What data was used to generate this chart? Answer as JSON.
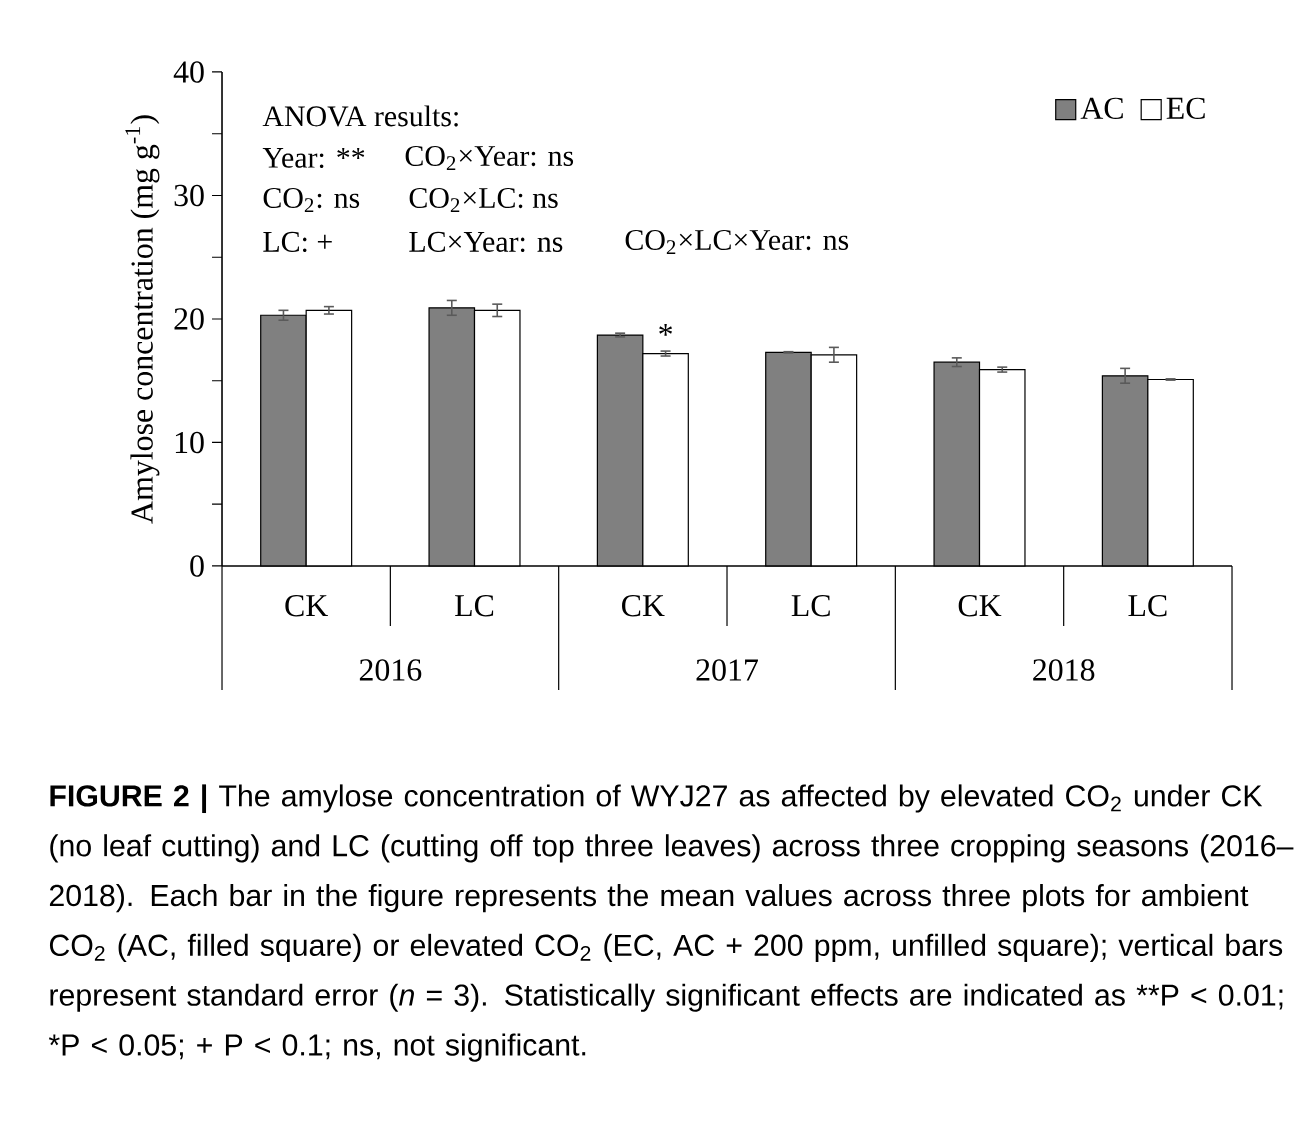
{
  "chart_data": {
    "type": "bar",
    "ylabel": "Amylose concentration (mg g$^{-1}$)",
    "categories": [
      "CK",
      "LC",
      "CK",
      "LC",
      "CK",
      "LC"
    ],
    "series": [
      {
        "name": "AC",
        "color": "#808080",
        "values": [
          20.3,
          20.9,
          18.7,
          17.3,
          16.5,
          15.4
        ],
        "errors": [
          0.4,
          0.6,
          0.15,
          0.05,
          0.35,
          0.6
        ]
      },
      {
        "name": "EC",
        "color": "#ffffff",
        "values": [
          20.7,
          20.7,
          17.2,
          17.1,
          15.9,
          15.1
        ],
        "errors": [
          0.3,
          0.5,
          0.2,
          0.6,
          0.2,
          0.05
        ]
      }
    ],
    "ylim": [
      0,
      40
    ],
    "yticks": [
      0,
      {
        "value": 5,
        "label": null
      },
      10,
      {
        "value": 15,
        "label": null
      },
      20,
      {
        "value": 25,
        "label": null
      },
      30,
      {
        "value": 35,
        "label": null
      },
      40
    ],
    "legend": "top right",
    "annotations": [
      "ANOVA results:",
      "Year: **",
      "CO$_{2}$×Year: ns",
      "CO$_{2}$: ns",
      "CO$_{2}$×LC: ns",
      "LC: +",
      "LC×Year: ns",
      "CO$_{2}$×LC×Year: ns",
      "*",
      "2016",
      "2017",
      "2018",
      "**FIGURE 2 |** The amylose concentration of WYJ27 as affected by elevated CO$_{2}$ under CK (no leaf cutting) and LC (cutting off top three leaves) across three cropping seasons (2016–2018). Each bar in the figure represents the mean values across three plots for ambient CO$_{2}$ (AC, filled square) or elevated CO$_{2}$ (EC, AC + 200 ppm, unfilled square); vertical bars represent standard error (*n* = 3). Statistically significant effects are indicated as",
      "**P < 0.01; *P < 0.05; + P < 0.1; ns, not significant."
    ]
  }
}
